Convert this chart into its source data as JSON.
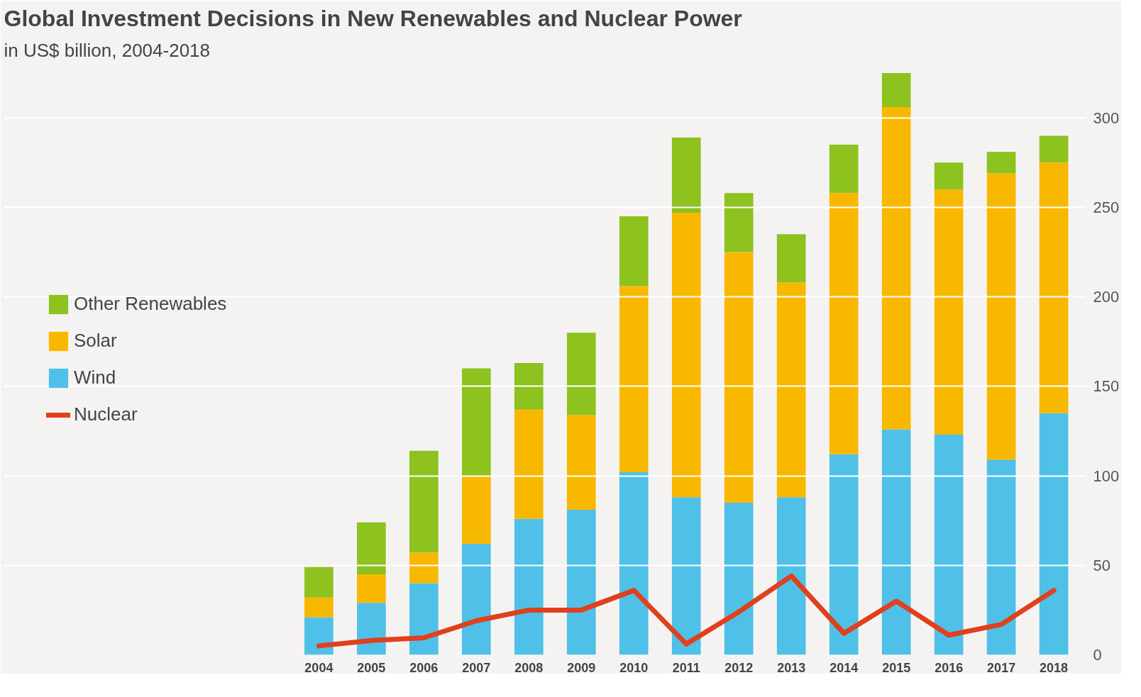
{
  "chart_data": {
    "type": "bar",
    "title": "Global Investment Decisions in New Renewables and Nuclear Power",
    "subtitle": "in US$ billion, 2004-2018",
    "categories": [
      "2004",
      "2005",
      "2006",
      "2007",
      "2008",
      "2009",
      "2010",
      "2011",
      "2012",
      "2013",
      "2014",
      "2015",
      "2016",
      "2017",
      "2018"
    ],
    "series": [
      {
        "name": "Wind",
        "color": "#4fc0e8",
        "values": [
          21,
          29,
          40,
          62,
          76,
          81,
          102,
          88,
          85,
          88,
          112,
          126,
          123,
          109,
          135
        ]
      },
      {
        "name": "Solar",
        "color": "#f9b800",
        "values": [
          11,
          16,
          17,
          38,
          61,
          53,
          104,
          159,
          140,
          120,
          146,
          180,
          137,
          160,
          140
        ]
      },
      {
        "name": "Other Renewables",
        "color": "#8dc21f",
        "values": [
          17,
          29,
          57,
          60,
          26,
          46,
          39,
          42,
          33,
          27,
          27,
          19,
          15,
          12,
          15
        ]
      },
      {
        "name": "Nuclear",
        "type": "line",
        "color": "#e0401c",
        "values": [
          5,
          8,
          9.5,
          19,
          25,
          25,
          36,
          6,
          24,
          44,
          12,
          30,
          11,
          17,
          36
        ]
      }
    ],
    "stacked": true,
    "ylim": [
      0,
      330
    ],
    "yticks": [
      0,
      50,
      100,
      150,
      200,
      250,
      300
    ],
    "grid": "y",
    "legend": "left"
  }
}
